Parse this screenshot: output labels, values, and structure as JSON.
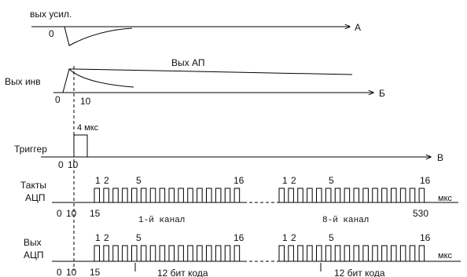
{
  "signals": {
    "amp_out": {
      "label": "вых усил.",
      "zero": "0",
      "end_label": "А"
    },
    "inv_out": {
      "label": "Вых инв",
      "ap_label": "Вых АП",
      "zero": "0",
      "ten": "10",
      "end_label": "Б"
    },
    "trigger": {
      "label": "Триггер",
      "pulse_label": "4 мкс",
      "zero": "0",
      "ten": "10",
      "end_label": "В"
    },
    "adc_clock": {
      "label_line1": "Такты",
      "label_line2": "АЦП",
      "unit": "мкс",
      "pulse_labels_1": [
        "1",
        "2",
        "5",
        "16"
      ],
      "pulse_labels_2": [
        "1",
        "2",
        "5",
        "16"
      ],
      "axis_ticks": [
        "0",
        "10",
        "15",
        "530"
      ],
      "channel_1": "1-й канал",
      "channel_8": "8-й канал"
    },
    "adc_out": {
      "label_line1": "Вых",
      "label_line2": "АЦП",
      "unit": "мкс",
      "pulse_labels_1": [
        "1",
        "2",
        "5",
        "16"
      ],
      "pulse_labels_2": [
        "1",
        "2",
        "5",
        "16"
      ],
      "axis_ticks": [
        "0",
        "10",
        "15"
      ],
      "code_label_1": "12 бит кода",
      "code_label_2": "12 бит кода"
    }
  },
  "adc_pulse_count": 16
}
